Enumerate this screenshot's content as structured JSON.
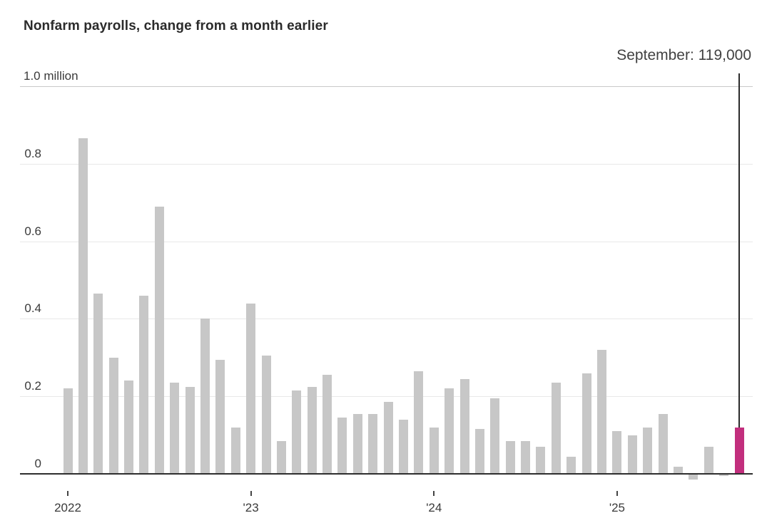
{
  "header": {
    "title": "Nonfarm payrolls, change from a month earlier"
  },
  "annotation": {
    "label": "September: 119,000",
    "month": "September",
    "value_text": "119,000"
  },
  "chart_data": {
    "type": "bar",
    "title": "Nonfarm payrolls, change from a month earlier",
    "unit": "millions of jobs, monthly change",
    "x": [
      "Jan 2022",
      "Feb 2022",
      "Mar 2022",
      "Apr 2022",
      "May 2022",
      "Jun 2022",
      "Jul 2022",
      "Aug 2022",
      "Sep 2022",
      "Oct 2022",
      "Nov 2022",
      "Dec 2022",
      "Jan 2023",
      "Feb 2023",
      "Mar 2023",
      "Apr 2023",
      "May 2023",
      "Jun 2023",
      "Jul 2023",
      "Aug 2023",
      "Sep 2023",
      "Oct 2023",
      "Nov 2023",
      "Dec 2023",
      "Jan 2024",
      "Feb 2024",
      "Mar 2024",
      "Apr 2024",
      "May 2024",
      "Jun 2024",
      "Jul 2024",
      "Aug 2024",
      "Sep 2024",
      "Oct 2024",
      "Nov 2024",
      "Dec 2024",
      "Jan 2025",
      "Feb 2025",
      "Mar 2025",
      "Apr 2025",
      "May 2025",
      "Jun 2025",
      "Jul 2025",
      "Aug 2025",
      "Sep 2025"
    ],
    "values": [
      0.22,
      0.865,
      0.465,
      0.3,
      0.24,
      0.46,
      0.69,
      0.235,
      0.225,
      0.4,
      0.295,
      0.12,
      0.44,
      0.305,
      0.085,
      0.215,
      0.225,
      0.255,
      0.145,
      0.155,
      0.155,
      0.185,
      0.14,
      0.265,
      0.12,
      0.22,
      0.245,
      0.115,
      0.195,
      0.085,
      0.085,
      0.07,
      0.235,
      0.045,
      0.26,
      0.32,
      0.11,
      0.1,
      0.12,
      0.155,
      0.019,
      -0.014,
      0.07,
      -0.005,
      0.119
    ],
    "highlight": {
      "index": 44,
      "x": "Sep 2025",
      "value": 0.119,
      "label": "September: 119,000"
    },
    "y_axis": {
      "ticks": [
        1.0,
        0.8,
        0.6,
        0.4,
        0.2,
        0
      ],
      "tick_labels": [
        "1.0 million",
        "0.8",
        "0.6",
        "0.4",
        "0.2",
        "0"
      ],
      "ylim": [
        -0.02,
        1.0
      ],
      "gridlines": true
    },
    "x_axis": {
      "tick_indices": [
        0,
        12,
        24,
        36
      ],
      "tick_labels": [
        "2022",
        "'23",
        "'24",
        "'25"
      ]
    },
    "legend": "none",
    "colors": {
      "bar": "#c7c7c7",
      "highlight_bar": "#c22e7d",
      "gridline": "#e9e9e9",
      "top_gridline": "#c9c9c9",
      "zero_axis": "#2e2e2e",
      "axis_text": "#3a3a3a",
      "title_text": "#2b2b2b",
      "annotation_text": "#424242"
    }
  }
}
